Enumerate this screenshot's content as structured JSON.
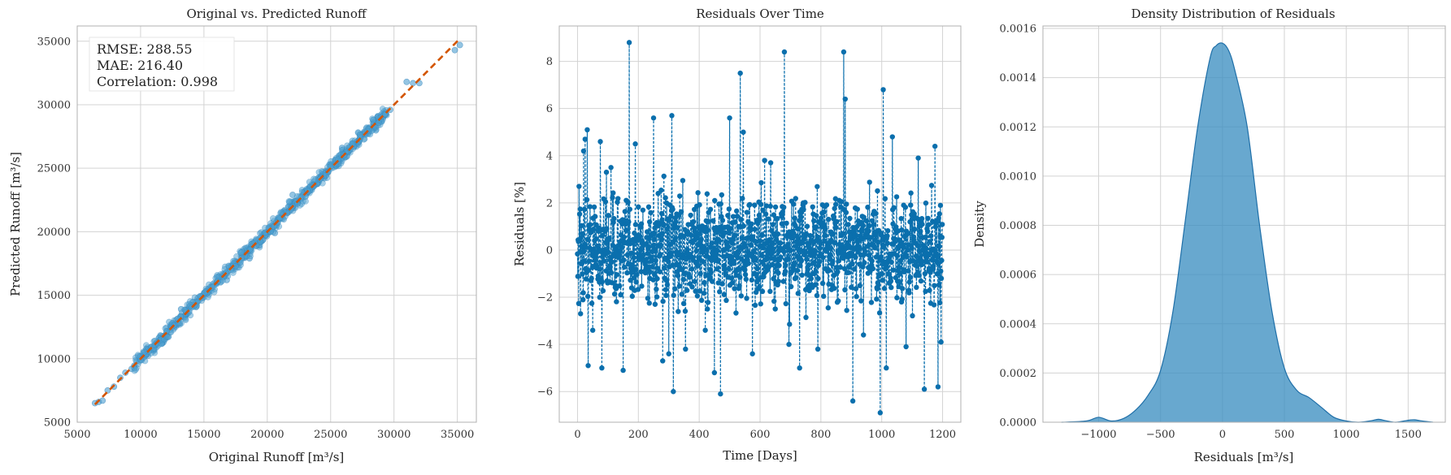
{
  "chart_data": [
    {
      "type": "scatter",
      "title": "Original vs. Predicted Runoff",
      "xlabel": "Original Runoff [m³/s]",
      "ylabel": "Predicted Runoff [m³/s]",
      "xlim": [
        5000,
        36500
      ],
      "ylim": [
        5000,
        36200
      ],
      "xticks": [
        5000,
        10000,
        15000,
        20000,
        25000,
        30000,
        35000
      ],
      "yticks": [
        5000,
        10000,
        15000,
        20000,
        25000,
        30000,
        35000
      ],
      "stats": [
        "RMSE: 288.55",
        "MAE: 216.40",
        "Correlation: 0.998"
      ],
      "identity_line": {
        "x": [
          6400,
          35200
        ],
        "y": [
          6400,
          35200
        ]
      },
      "points": [
        [
          6400,
          6500
        ],
        [
          6700,
          6600
        ],
        [
          7000,
          6700
        ],
        [
          7400,
          7500
        ],
        [
          7900,
          7800
        ],
        [
          8400,
          8500
        ],
        [
          8800,
          8900
        ],
        [
          9300,
          9200
        ],
        [
          9700,
          9800
        ],
        [
          10100,
          10200
        ],
        [
          10400,
          10300
        ],
        [
          10800,
          10900
        ],
        [
          11200,
          11100
        ],
        [
          11600,
          11700
        ],
        [
          12000,
          11900
        ],
        [
          12400,
          12500
        ],
        [
          12800,
          12700
        ],
        [
          13200,
          13300
        ],
        [
          13600,
          13500
        ],
        [
          14000,
          14100
        ],
        [
          14400,
          14300
        ],
        [
          14800,
          14900
        ],
        [
          15200,
          15100
        ],
        [
          15600,
          15700
        ],
        [
          16000,
          15900
        ],
        [
          16400,
          16500
        ],
        [
          16800,
          16700
        ],
        [
          17200,
          17300
        ],
        [
          17600,
          17500
        ],
        [
          18000,
          18100
        ],
        [
          18400,
          18300
        ],
        [
          18800,
          18900
        ],
        [
          19200,
          19100
        ],
        [
          19600,
          19700
        ],
        [
          20000,
          19900
        ],
        [
          20400,
          20500
        ],
        [
          20800,
          20700
        ],
        [
          21200,
          21300
        ],
        [
          21600,
          21500
        ],
        [
          22000,
          22100
        ],
        [
          22400,
          22300
        ],
        [
          22800,
          22900
        ],
        [
          23200,
          23100
        ],
        [
          23600,
          23700
        ],
        [
          24000,
          23900
        ],
        [
          24400,
          24500
        ],
        [
          24800,
          24700
        ],
        [
          25200,
          25300
        ],
        [
          25600,
          25500
        ],
        [
          26000,
          26100
        ],
        [
          26400,
          26300
        ],
        [
          26800,
          26900
        ],
        [
          27200,
          27100
        ],
        [
          27600,
          27700
        ],
        [
          28000,
          27900
        ],
        [
          28400,
          28500
        ],
        [
          28800,
          28700
        ],
        [
          29300,
          29400
        ],
        [
          29700,
          29600
        ],
        [
          31000,
          31800
        ],
        [
          31500,
          31700
        ],
        [
          32000,
          31700
        ],
        [
          34800,
          34300
        ],
        [
          35200,
          34700
        ],
        [
          18600,
          17900
        ],
        [
          20600,
          19900
        ],
        [
          25900,
          26600
        ],
        [
          13200,
          13900
        ],
        [
          22000,
          22900
        ],
        [
          16800,
          16200
        ]
      ]
    },
    {
      "type": "line",
      "title": "Residuals Over Time",
      "xlabel": "Time [Days]",
      "ylabel": "Residuals [%]",
      "xlim": [
        -60,
        1260
      ],
      "ylim": [
        -7.3,
        9.5
      ],
      "xticks": [
        0,
        200,
        400,
        600,
        800,
        1000,
        1200
      ],
      "yticks": [
        -6,
        -4,
        -2,
        0,
        2,
        4,
        6,
        8
      ],
      "n_days": 1200,
      "peaks": [
        [
          5,
          2.7
        ],
        [
          10,
          -2.7
        ],
        [
          20,
          4.2
        ],
        [
          25,
          4.7
        ],
        [
          32,
          5.1
        ],
        [
          35,
          -4.9
        ],
        [
          50,
          -3.4
        ],
        [
          75,
          4.6
        ],
        [
          80,
          -5.0
        ],
        [
          95,
          3.3
        ],
        [
          110,
          3.5
        ],
        [
          150,
          -5.1
        ],
        [
          170,
          8.8
        ],
        [
          190,
          4.5
        ],
        [
          250,
          5.6
        ],
        [
          280,
          -4.7
        ],
        [
          300,
          -4.4
        ],
        [
          310,
          5.7
        ],
        [
          315,
          -6.0
        ],
        [
          355,
          -4.2
        ],
        [
          420,
          -3.4
        ],
        [
          450,
          -5.2
        ],
        [
          470,
          -6.1
        ],
        [
          500,
          5.6
        ],
        [
          535,
          7.5
        ],
        [
          545,
          5.0
        ],
        [
          575,
          -4.4
        ],
        [
          615,
          3.8
        ],
        [
          635,
          3.7
        ],
        [
          680,
          8.4
        ],
        [
          695,
          -4.0
        ],
        [
          730,
          -5.0
        ],
        [
          790,
          -4.2
        ],
        [
          875,
          8.4
        ],
        [
          880,
          6.4
        ],
        [
          905,
          -6.4
        ],
        [
          940,
          -3.6
        ],
        [
          995,
          -6.9
        ],
        [
          1005,
          6.8
        ],
        [
          1015,
          -5.0
        ],
        [
          1035,
          4.8
        ],
        [
          1080,
          -4.1
        ],
        [
          1120,
          3.9
        ],
        [
          1140,
          -5.9
        ],
        [
          1175,
          4.4
        ],
        [
          1185,
          -5.8
        ],
        [
          1195,
          -3.9
        ]
      ]
    },
    {
      "type": "area",
      "title": "Density Distribution of Residuals",
      "xlabel": "Residuals [m³/s]",
      "ylabel": "Density",
      "xlim": [
        -1450,
        1800
      ],
      "ylim": [
        0,
        0.00161
      ],
      "xticks": [
        -1000,
        -500,
        0,
        500,
        1000,
        1500
      ],
      "yticks": [
        0,
        0.0002,
        0.0004,
        0.0006,
        0.0008,
        0.001,
        0.0012,
        0.0014,
        0.0016
      ],
      "x": [
        -1300,
        -1100,
        -1000,
        -900,
        -800,
        -700,
        -600,
        -500,
        -400,
        -300,
        -200,
        -100,
        -50,
        0,
        50,
        100,
        200,
        300,
        400,
        500,
        600,
        700,
        800,
        900,
        1000,
        1100,
        1200,
        1260,
        1320,
        1400,
        1500,
        1550,
        1600,
        1700
      ],
      "y": [
        0,
        5e-06,
        2e-05,
        5e-06,
        1.5e-05,
        5e-05,
        0.00011,
        0.00021,
        0.00045,
        0.00082,
        0.0012,
        0.00148,
        0.00153,
        0.00154,
        0.00151,
        0.00143,
        0.0012,
        0.0008,
        0.00045,
        0.00022,
        0.00013,
        0.0001,
        6e-05,
        2e-05,
        5e-06,
        0,
        6e-06,
        1.2e-05,
        6e-06,
        0,
        8e-06,
        1e-05,
        6e-06,
        0
      ],
      "color": "#3d8fc2"
    }
  ],
  "colors": {
    "scatter": "#4d9fd0",
    "line": "#0a6fad",
    "identity": "#d35400",
    "grid": "#d3d3d3",
    "axis": "#b0b0b0"
  }
}
